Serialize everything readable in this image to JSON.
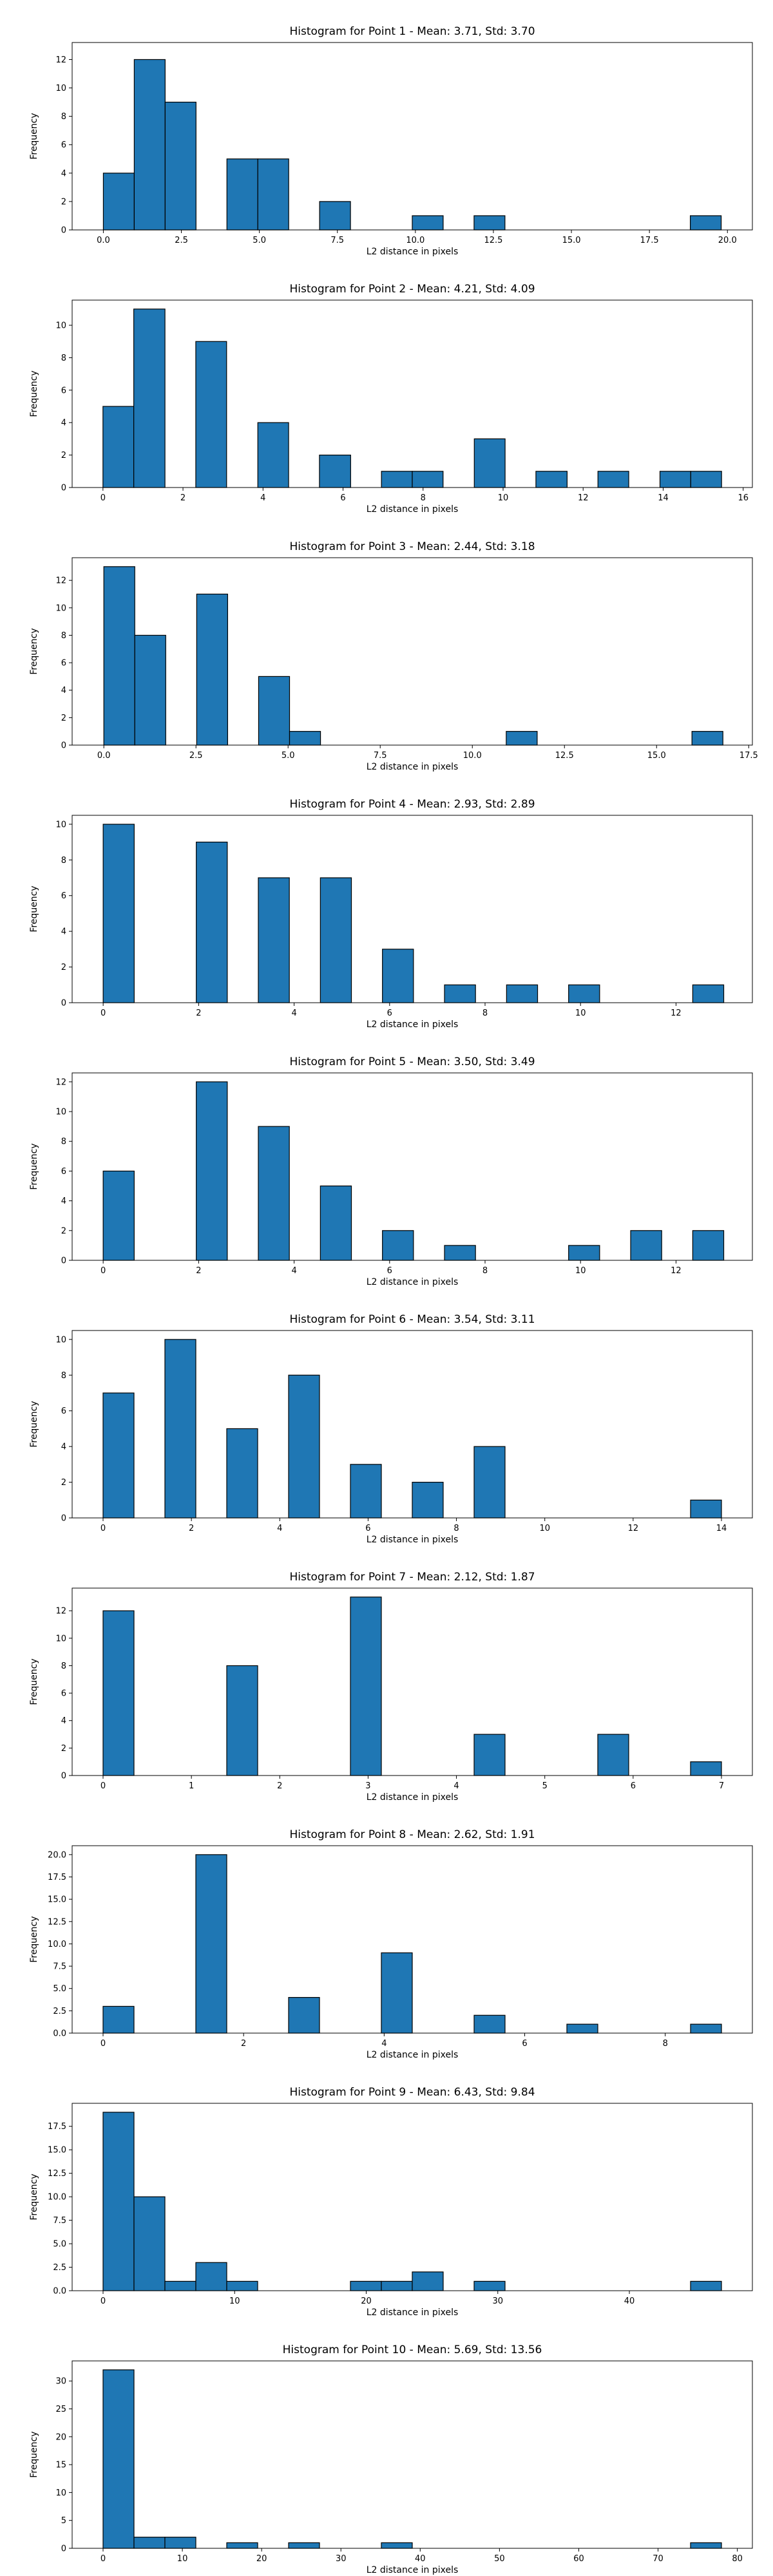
{
  "chart_data": [
    {
      "type": "bar",
      "title": "Histogram for Point 1 - Mean: 3.71, Std: 3.70",
      "xlabel": "L2 distance in pixels",
      "ylabel": "Frequency",
      "xlim": [
        -1.0,
        20.8
      ],
      "ylim": [
        0,
        13.2
      ],
      "xticks": [
        0.0,
        2.5,
        5.0,
        7.5,
        10.0,
        12.5,
        15.0,
        17.5,
        20.0
      ],
      "xtick_labels": [
        "0.0",
        "2.5",
        "5.0",
        "7.5",
        "10.0",
        "12.5",
        "15.0",
        "17.5",
        "20.0"
      ],
      "yticks": [
        0,
        2,
        4,
        6,
        8,
        10,
        12
      ],
      "ytick_labels": [
        "0",
        "2",
        "4",
        "6",
        "8",
        "10",
        "12"
      ],
      "bin_edges": [
        0.0,
        0.99,
        1.98,
        2.97,
        3.96,
        4.95,
        5.94,
        6.93,
        7.92,
        8.91,
        9.9,
        10.89,
        11.88,
        12.87,
        13.86,
        14.85,
        15.84,
        16.83,
        17.82,
        18.81,
        19.8
      ],
      "values": [
        4,
        12,
        9,
        0,
        5,
        5,
        0,
        2,
        0,
        0,
        1,
        0,
        1,
        0,
        0,
        0,
        0,
        0,
        0,
        1
      ],
      "bar_color": "#1f77b4",
      "edge_color": "#000000",
      "grid": false
    },
    {
      "type": "bar",
      "title": "Histogram for Point 2 - Mean: 4.21, Std: 4.09",
      "xlabel": "L2 distance in pixels",
      "ylabel": "Frequency",
      "xlim": [
        -0.77,
        16.23
      ],
      "ylim": [
        0,
        11.55
      ],
      "xticks": [
        0,
        2,
        4,
        6,
        8,
        10,
        12,
        14,
        16
      ],
      "xtick_labels": [
        "0",
        "2",
        "4",
        "6",
        "8",
        "10",
        "12",
        "14",
        "16"
      ],
      "yticks": [
        0,
        2,
        4,
        6,
        8,
        10
      ],
      "ytick_labels": [
        "0",
        "2",
        "4",
        "6",
        "8",
        "10"
      ],
      "bin_edges": [
        0.0,
        0.77,
        1.55,
        2.32,
        3.09,
        3.87,
        4.64,
        5.41,
        6.19,
        6.96,
        7.73,
        8.5,
        9.28,
        10.05,
        10.82,
        11.6,
        12.37,
        13.14,
        13.92,
        14.69,
        15.46
      ],
      "values": [
        5,
        11,
        0,
        9,
        0,
        4,
        0,
        2,
        0,
        1,
        1,
        0,
        3,
        0,
        1,
        0,
        1,
        0,
        1,
        1
      ],
      "bar_color": "#1f77b4",
      "edge_color": "#000000",
      "grid": false
    },
    {
      "type": "bar",
      "title": "Histogram for Point 3 - Mean: 2.44, Std: 3.18",
      "xlabel": "L2 distance in pixels",
      "ylabel": "Frequency",
      "xlim": [
        -0.86,
        17.6
      ],
      "ylim": [
        0,
        13.65
      ],
      "xticks": [
        0.0,
        2.5,
        5.0,
        7.5,
        10.0,
        12.5,
        15.0,
        17.5
      ],
      "xtick_labels": [
        "0.0",
        "2.5",
        "5.0",
        "7.5",
        "10.0",
        "12.5",
        "15.0",
        "17.5"
      ],
      "yticks": [
        0,
        2,
        4,
        6,
        8,
        10,
        12
      ],
      "ytick_labels": [
        "0",
        "2",
        "4",
        "6",
        "8",
        "10",
        "12"
      ],
      "bin_edges": [
        0.0,
        0.84,
        1.68,
        2.52,
        3.36,
        4.2,
        5.04,
        5.88,
        6.72,
        7.56,
        8.4,
        9.24,
        10.08,
        10.92,
        11.76,
        12.6,
        13.44,
        14.28,
        15.12,
        15.96,
        16.8
      ],
      "values": [
        13,
        8,
        0,
        11,
        0,
        5,
        1,
        0,
        0,
        0,
        0,
        0,
        0,
        1,
        0,
        0,
        0,
        0,
        0,
        1
      ],
      "bar_color": "#1f77b4",
      "edge_color": "#000000",
      "grid": false
    },
    {
      "type": "bar",
      "title": "Histogram for Point 4 - Mean: 2.93, Std: 2.89",
      "xlabel": "L2 distance in pixels",
      "ylabel": "Frequency",
      "xlim": [
        -0.65,
        13.6
      ],
      "ylim": [
        0,
        10.5
      ],
      "xticks": [
        0,
        2,
        4,
        6,
        8,
        10,
        12
      ],
      "xtick_labels": [
        "0",
        "2",
        "4",
        "6",
        "8",
        "10",
        "12"
      ],
      "yticks": [
        0,
        2,
        4,
        6,
        8,
        10
      ],
      "ytick_labels": [
        "0",
        "2",
        "4",
        "6",
        "8",
        "10"
      ],
      "bin_edges": [
        0.0,
        0.65,
        1.3,
        1.95,
        2.6,
        3.25,
        3.9,
        4.55,
        5.2,
        5.85,
        6.5,
        7.15,
        7.8,
        8.45,
        9.1,
        9.75,
        10.4,
        11.05,
        11.7,
        12.35,
        13.0
      ],
      "values": [
        10,
        0,
        0,
        9,
        0,
        7,
        0,
        7,
        0,
        3,
        0,
        1,
        0,
        1,
        0,
        1,
        0,
        0,
        0,
        1
      ],
      "bar_color": "#1f77b4",
      "edge_color": "#000000",
      "grid": false
    },
    {
      "type": "bar",
      "title": "Histogram for Point 5 - Mean: 3.50, Std: 3.49",
      "xlabel": "L2 distance in pixels",
      "ylabel": "Frequency",
      "xlim": [
        -0.65,
        13.6
      ],
      "ylim": [
        0,
        12.6
      ],
      "xticks": [
        0,
        2,
        4,
        6,
        8,
        10,
        12
      ],
      "xtick_labels": [
        "0",
        "2",
        "4",
        "6",
        "8",
        "10",
        "12"
      ],
      "yticks": [
        0,
        2,
        4,
        6,
        8,
        10,
        12
      ],
      "ytick_labels": [
        "0",
        "2",
        "4",
        "6",
        "8",
        "10",
        "12"
      ],
      "bin_edges": [
        0.0,
        0.65,
        1.3,
        1.95,
        2.6,
        3.25,
        3.9,
        4.55,
        5.2,
        5.85,
        6.5,
        7.15,
        7.8,
        8.45,
        9.1,
        9.75,
        10.4,
        11.05,
        11.7,
        12.35,
        13.0
      ],
      "values": [
        6,
        0,
        0,
        12,
        0,
        9,
        0,
        5,
        0,
        2,
        0,
        1,
        0,
        0,
        0,
        1,
        0,
        2,
        0,
        2
      ],
      "bar_color": "#1f77b4",
      "edge_color": "#000000",
      "grid": false
    },
    {
      "type": "bar",
      "title": "Histogram for Point 6 - Mean: 3.54, Std: 3.11",
      "xlabel": "L2 distance in pixels",
      "ylabel": "Frequency",
      "xlim": [
        -0.7,
        14.7
      ],
      "ylim": [
        0,
        10.5
      ],
      "xticks": [
        0,
        2,
        4,
        6,
        8,
        10,
        12,
        14
      ],
      "xtick_labels": [
        "0",
        "2",
        "4",
        "6",
        "8",
        "10",
        "12",
        "14"
      ],
      "yticks": [
        0,
        2,
        4,
        6,
        8,
        10
      ],
      "ytick_labels": [
        "0",
        "2",
        "4",
        "6",
        "8",
        "10"
      ],
      "bin_edges": [
        0.0,
        0.7,
        1.4,
        2.1,
        2.8,
        3.5,
        4.2,
        4.9,
        5.6,
        6.3,
        7.0,
        7.7,
        8.4,
        9.1,
        9.8,
        10.5,
        11.2,
        11.9,
        12.6,
        13.3,
        14.0
      ],
      "values": [
        7,
        0,
        10,
        0,
        5,
        0,
        8,
        0,
        3,
        0,
        2,
        0,
        4,
        0,
        0,
        0,
        0,
        0,
        0,
        1
      ],
      "bar_color": "#1f77b4",
      "edge_color": "#000000",
      "grid": false
    },
    {
      "type": "bar",
      "title": "Histogram for Point 7 - Mean: 2.12, Std: 1.87",
      "xlabel": "L2 distance in pixels",
      "ylabel": "Frequency",
      "xlim": [
        -0.35,
        7.35
      ],
      "ylim": [
        0,
        13.65
      ],
      "xticks": [
        0,
        1,
        2,
        3,
        4,
        5,
        6,
        7
      ],
      "xtick_labels": [
        "0",
        "1",
        "2",
        "3",
        "4",
        "5",
        "6",
        "7"
      ],
      "yticks": [
        0,
        2,
        4,
        6,
        8,
        10,
        12
      ],
      "ytick_labels": [
        "0",
        "2",
        "4",
        "6",
        "8",
        "10",
        "12"
      ],
      "bin_edges": [
        0.0,
        0.35,
        0.7,
        1.05,
        1.4,
        1.75,
        2.1,
        2.45,
        2.8,
        3.15,
        3.5,
        3.85,
        4.2,
        4.55,
        4.9,
        5.25,
        5.6,
        5.95,
        6.3,
        6.65,
        7.0
      ],
      "values": [
        12,
        0,
        0,
        0,
        8,
        0,
        0,
        0,
        13,
        0,
        0,
        0,
        3,
        0,
        0,
        0,
        3,
        0,
        0,
        1
      ],
      "bar_color": "#1f77b4",
      "edge_color": "#000000",
      "grid": false
    },
    {
      "type": "bar",
      "title": "Histogram for Point 8 - Mean: 2.62, Std: 1.91",
      "xlabel": "L2 distance in pixels",
      "ylabel": "Frequency",
      "xlim": [
        -0.44,
        9.24
      ],
      "ylim": [
        0,
        21.0
      ],
      "xticks": [
        0,
        2,
        4,
        6,
        8
      ],
      "xtick_labels": [
        "0",
        "2",
        "4",
        "6",
        "8"
      ],
      "yticks": [
        0.0,
        2.5,
        5.0,
        7.5,
        10.0,
        12.5,
        15.0,
        17.5,
        20.0
      ],
      "ytick_labels": [
        "0.0",
        "2.5",
        "5.0",
        "7.5",
        "10.0",
        "12.5",
        "15.0",
        "17.5",
        "20.0"
      ],
      "bin_edges": [
        0.0,
        0.44,
        0.88,
        1.32,
        1.76,
        2.2,
        2.64,
        3.08,
        3.52,
        3.96,
        4.4,
        4.84,
        5.28,
        5.72,
        6.16,
        6.6,
        7.04,
        7.48,
        7.92,
        8.36,
        8.8
      ],
      "values": [
        3,
        0,
        0,
        20,
        0,
        0,
        4,
        0,
        0,
        9,
        0,
        0,
        2,
        0,
        0,
        1,
        0,
        0,
        0,
        1
      ],
      "bar_color": "#1f77b4",
      "edge_color": "#000000",
      "grid": false
    },
    {
      "type": "bar",
      "title": "Histogram for Point 9 - Mean: 6.43, Std: 9.84",
      "xlabel": "L2 distance in pixels",
      "ylabel": "Frequency",
      "xlim": [
        -2.35,
        49.35
      ],
      "ylim": [
        0,
        19.95
      ],
      "xticks": [
        0,
        10,
        20,
        30,
        40
      ],
      "xtick_labels": [
        "0",
        "10",
        "20",
        "30",
        "40"
      ],
      "yticks": [
        0.0,
        2.5,
        5.0,
        7.5,
        10.0,
        12.5,
        15.0,
        17.5
      ],
      "ytick_labels": [
        "0.0",
        "2.5",
        "5.0",
        "7.5",
        "10.0",
        "12.5",
        "15.0",
        "17.5"
      ],
      "bin_edges": [
        0.0,
        2.35,
        4.7,
        7.05,
        9.4,
        11.75,
        14.1,
        16.45,
        18.8,
        21.15,
        23.5,
        25.85,
        28.2,
        30.55,
        32.9,
        35.25,
        37.6,
        39.95,
        42.3,
        44.65,
        47.0
      ],
      "values": [
        19,
        10,
        1,
        3,
        1,
        0,
        0,
        0,
        1,
        1,
        2,
        0,
        1,
        0,
        0,
        0,
        0,
        0,
        0,
        1
      ],
      "bar_color": "#1f77b4",
      "edge_color": "#000000",
      "grid": false
    },
    {
      "type": "bar",
      "title": "Histogram for Point 10 - Mean: 5.69, Std: 13.56",
      "xlabel": "L2 distance in pixels",
      "ylabel": "Frequency",
      "xlim": [
        -3.9,
        81.9
      ],
      "ylim": [
        0,
        33.6
      ],
      "xticks": [
        0,
        10,
        20,
        30,
        40,
        50,
        60,
        70,
        80
      ],
      "xtick_labels": [
        "0",
        "10",
        "20",
        "30",
        "40",
        "50",
        "60",
        "70",
        "80"
      ],
      "yticks": [
        0,
        5,
        10,
        15,
        20,
        25,
        30
      ],
      "ytick_labels": [
        "0",
        "5",
        "10",
        "15",
        "20",
        "25",
        "30"
      ],
      "bin_edges": [
        0.0,
        3.9,
        7.8,
        11.7,
        15.6,
        19.5,
        23.4,
        27.3,
        31.2,
        35.1,
        39.0,
        42.9,
        46.8,
        50.7,
        54.6,
        58.5,
        62.4,
        66.3,
        70.2,
        74.1,
        78.0
      ],
      "values": [
        32,
        2,
        2,
        0,
        1,
        0,
        1,
        0,
        0,
        1,
        0,
        0,
        0,
        0,
        0,
        0,
        0,
        0,
        0,
        1
      ],
      "bar_color": "#1f77b4",
      "edge_color": "#000000",
      "grid": false
    }
  ]
}
